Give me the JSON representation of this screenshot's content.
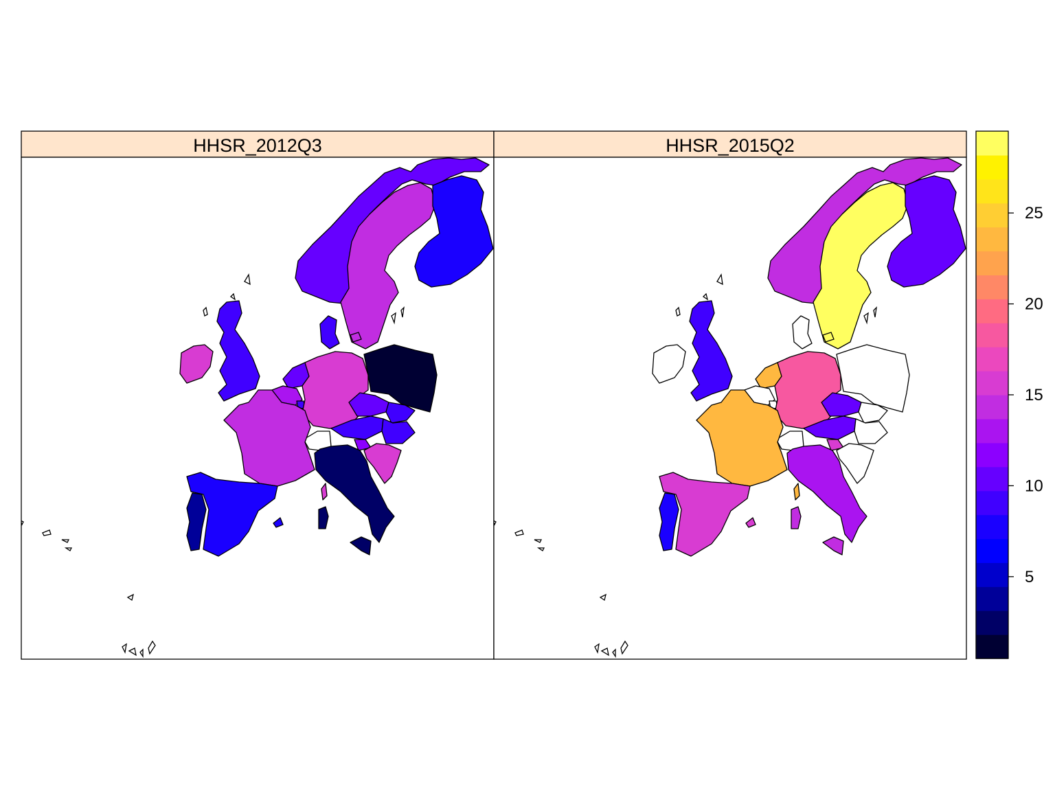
{
  "panels": [
    {
      "title": "HHSR_2012Q3",
      "values": {
        "norway": 11,
        "sweden": 14,
        "finland": 8,
        "denmark": 9,
        "ireland": 16,
        "uk": 9,
        "netherlands": 10,
        "belgium": 13,
        "luxembourg": 9,
        "germany": 16,
        "poland": 1,
        "czechia": 10,
        "slovakia": 9,
        "austria": 9,
        "hungary": 9,
        "slovenia": 12,
        "croatia": 16,
        "france": 14,
        "switzerland": null,
        "italy": 3,
        "sardinia": 3,
        "corsica": 15,
        "sicily": 3,
        "spain": 8,
        "portugal": 4,
        "balearics": 8
      }
    },
    {
      "title": "HHSR_2015Q2",
      "values": {
        "norway": 14,
        "sweden": 29,
        "finland": 11,
        "denmark": null,
        "ireland": null,
        "uk": 9,
        "netherlands": 24,
        "belgium": null,
        "luxembourg": null,
        "germany": 18,
        "poland": null,
        "czechia": 11,
        "slovakia": null,
        "austria": 11,
        "hungary": null,
        "slovenia": 15,
        "croatia": null,
        "france": 23,
        "switzerland": null,
        "italy": 13,
        "sardinia": 14,
        "corsica": 23,
        "sicily": 14,
        "spain": 16,
        "portugal": 8,
        "balearics": 16
      }
    }
  ],
  "colorkey": {
    "min": 0.5,
    "max": 29.5,
    "ticks": [
      "5",
      "10",
      "15",
      "20",
      "25"
    ],
    "tick_values": [
      5,
      10,
      15,
      20,
      25
    ],
    "colors": [
      "#000033",
      "#000066",
      "#000099",
      "#0000CC",
      "#0000FF",
      "#1A00FF",
      "#4000FF",
      "#6600FF",
      "#8C00FF",
      "#AA14F0",
      "#C12DE1",
      "#D83CD2",
      "#EB48BE",
      "#F758A0",
      "#FF6B82",
      "#FF8866",
      "#FFA34D",
      "#FFB840",
      "#FFCE33",
      "#FFE41A",
      "#FFF200",
      "#FFFF60"
    ]
  },
  "strip_color": "#FFE5CC"
}
